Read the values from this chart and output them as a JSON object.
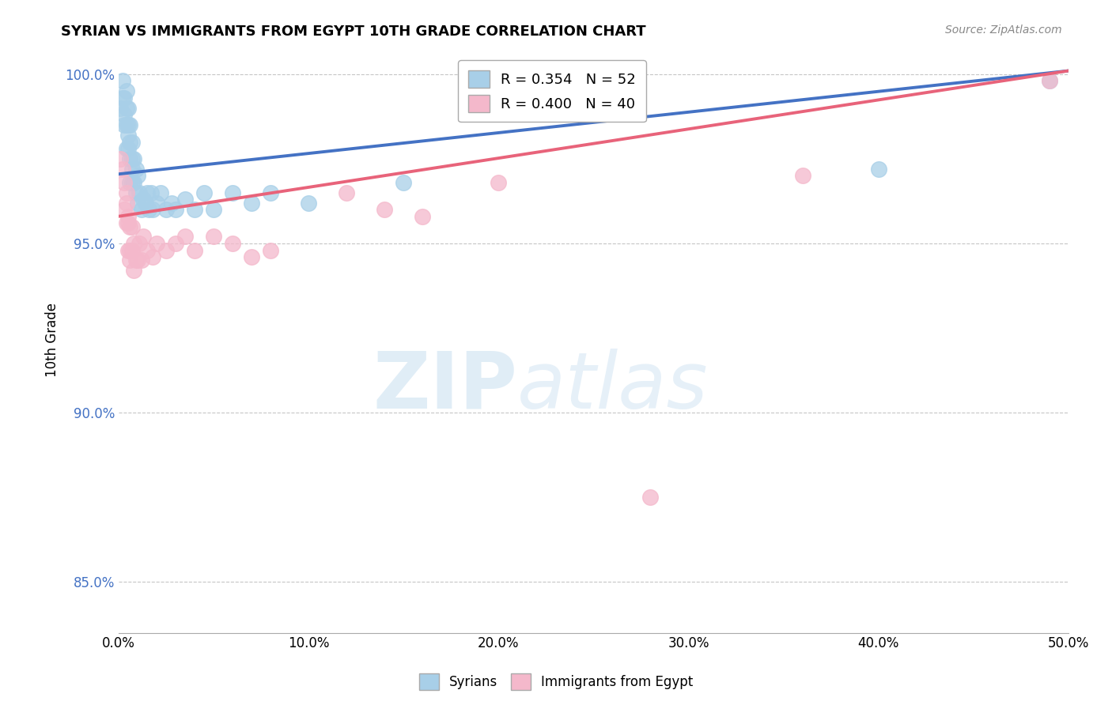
{
  "title": "SYRIAN VS IMMIGRANTS FROM EGYPT 10TH GRADE CORRELATION CHART",
  "source": "Source: ZipAtlas.com",
  "ylabel": "10th Grade",
  "xlim": [
    0.0,
    0.5
  ],
  "ylim": [
    0.835,
    1.008
  ],
  "xticks": [
    0.0,
    0.1,
    0.2,
    0.3,
    0.4,
    0.5
  ],
  "yticks": [
    0.85,
    0.9,
    0.95,
    1.0
  ],
  "ytick_labels": [
    "85.0%",
    "90.0%",
    "95.0%",
    "100.0%"
  ],
  "xtick_labels": [
    "0.0%",
    "10.0%",
    "20.0%",
    "30.0%",
    "40.0%",
    "50.0%"
  ],
  "legend_syrian": "R = 0.354   N = 52",
  "legend_egypt": "R = 0.400   N = 40",
  "legend_label_syrian": "Syrians",
  "legend_label_egypt": "Immigrants from Egypt",
  "syrian_color": "#a8cfe8",
  "egypt_color": "#f4b8cb",
  "syrian_line_color": "#4472c4",
  "egypt_line_color": "#e8637a",
  "syrian_points_x": [
    0.001,
    0.002,
    0.002,
    0.003,
    0.003,
    0.003,
    0.004,
    0.004,
    0.004,
    0.004,
    0.005,
    0.005,
    0.005,
    0.005,
    0.006,
    0.006,
    0.006,
    0.006,
    0.007,
    0.007,
    0.007,
    0.007,
    0.008,
    0.008,
    0.009,
    0.009,
    0.01,
    0.01,
    0.011,
    0.012,
    0.013,
    0.014,
    0.015,
    0.016,
    0.017,
    0.018,
    0.02,
    0.022,
    0.025,
    0.028,
    0.03,
    0.035,
    0.04,
    0.045,
    0.05,
    0.06,
    0.07,
    0.08,
    0.1,
    0.15,
    0.4,
    0.49
  ],
  "syrian_points_y": [
    0.99,
    0.998,
    0.993,
    0.988,
    0.993,
    0.985,
    0.99,
    0.985,
    0.978,
    0.995,
    0.99,
    0.985,
    0.978,
    0.982,
    0.985,
    0.975,
    0.968,
    0.98,
    0.975,
    0.968,
    0.972,
    0.98,
    0.968,
    0.975,
    0.965,
    0.972,
    0.962,
    0.97,
    0.965,
    0.96,
    0.963,
    0.962,
    0.965,
    0.96,
    0.965,
    0.96,
    0.962,
    0.965,
    0.96,
    0.962,
    0.96,
    0.963,
    0.96,
    0.965,
    0.96,
    0.965,
    0.962,
    0.965,
    0.962,
    0.968,
    0.972,
    0.998
  ],
  "egypt_points_x": [
    0.001,
    0.002,
    0.003,
    0.003,
    0.004,
    0.004,
    0.004,
    0.005,
    0.005,
    0.005,
    0.006,
    0.006,
    0.006,
    0.007,
    0.007,
    0.008,
    0.008,
    0.009,
    0.01,
    0.011,
    0.012,
    0.013,
    0.015,
    0.018,
    0.02,
    0.025,
    0.03,
    0.035,
    0.04,
    0.05,
    0.06,
    0.07,
    0.08,
    0.12,
    0.14,
    0.16,
    0.2,
    0.28,
    0.36,
    0.49
  ],
  "egypt_points_y": [
    0.975,
    0.972,
    0.968,
    0.96,
    0.965,
    0.956,
    0.962,
    0.956,
    0.948,
    0.958,
    0.948,
    0.955,
    0.945,
    0.948,
    0.955,
    0.942,
    0.95,
    0.945,
    0.945,
    0.95,
    0.945,
    0.952,
    0.948,
    0.946,
    0.95,
    0.948,
    0.95,
    0.952,
    0.948,
    0.952,
    0.95,
    0.946,
    0.948,
    0.965,
    0.96,
    0.958,
    0.968,
    0.875,
    0.97,
    0.998
  ],
  "watermark_zip": "ZIP",
  "watermark_atlas": "atlas",
  "background_color": "#ffffff",
  "grid_color": "#c0c0c0"
}
